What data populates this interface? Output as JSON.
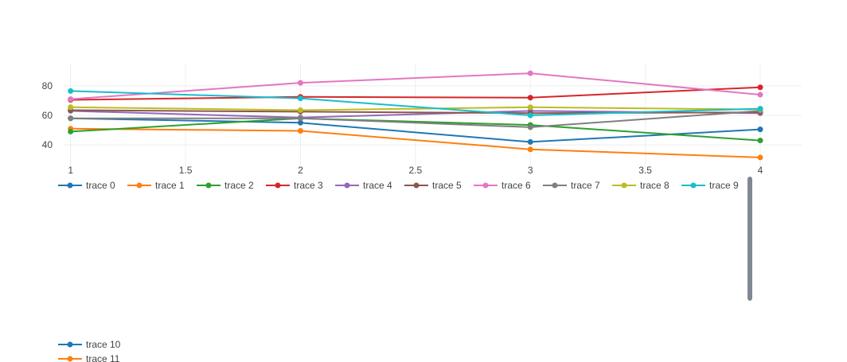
{
  "chart_data": {
    "type": "line",
    "x": [
      1,
      2,
      3,
      4
    ],
    "x_ticks": [
      "1",
      "1.5",
      "2",
      "2.5",
      "3",
      "3.5",
      "4"
    ],
    "x_tick_values": [
      1,
      1.5,
      2,
      2.5,
      3,
      3.5,
      4
    ],
    "y_ticks": [
      "40",
      "60",
      "80"
    ],
    "y_tick_values": [
      40,
      60,
      80
    ],
    "xlim": [
      0.97,
      4.18
    ],
    "ylim": [
      25,
      95
    ],
    "grid": true,
    "legend_position": "bottom, horizontal, scrollable",
    "series": [
      {
        "name": "trace 0",
        "color": "#1f77b4",
        "values": [
          58,
          55,
          42,
          50.5
        ]
      },
      {
        "name": "trace 1",
        "color": "#ff7f0e",
        "values": [
          51,
          49.5,
          37,
          31.5
        ]
      },
      {
        "name": "trace 2",
        "color": "#2ca02c",
        "values": [
          49,
          58,
          53.5,
          43
        ]
      },
      {
        "name": "trace 3",
        "color": "#d62728",
        "values": [
          70.5,
          72.5,
          72,
          79
        ]
      },
      {
        "name": "trace 4",
        "color": "#9467bd",
        "values": [
          63,
          58.5,
          63,
          61.5
        ]
      },
      {
        "name": "trace 5",
        "color": "#8c564b",
        "values": [
          63.5,
          62.5,
          61.5,
          62
        ]
      },
      {
        "name": "trace 6",
        "color": "#e377c2",
        "values": [
          71,
          82,
          88.5,
          74
        ]
      },
      {
        "name": "trace 7",
        "color": "#7f7f7f",
        "values": [
          58,
          58,
          52,
          63
        ]
      },
      {
        "name": "trace 8",
        "color": "#bcbd22",
        "values": [
          65.5,
          63.5,
          65.5,
          64
        ]
      },
      {
        "name": "trace 9",
        "color": "#17becf",
        "values": [
          76.5,
          71.5,
          60,
          64.5
        ]
      },
      {
        "name": "trace 10",
        "color": "#1f77b4"
      },
      {
        "name": "trace 11",
        "color": "#ff7f0e"
      }
    ]
  }
}
